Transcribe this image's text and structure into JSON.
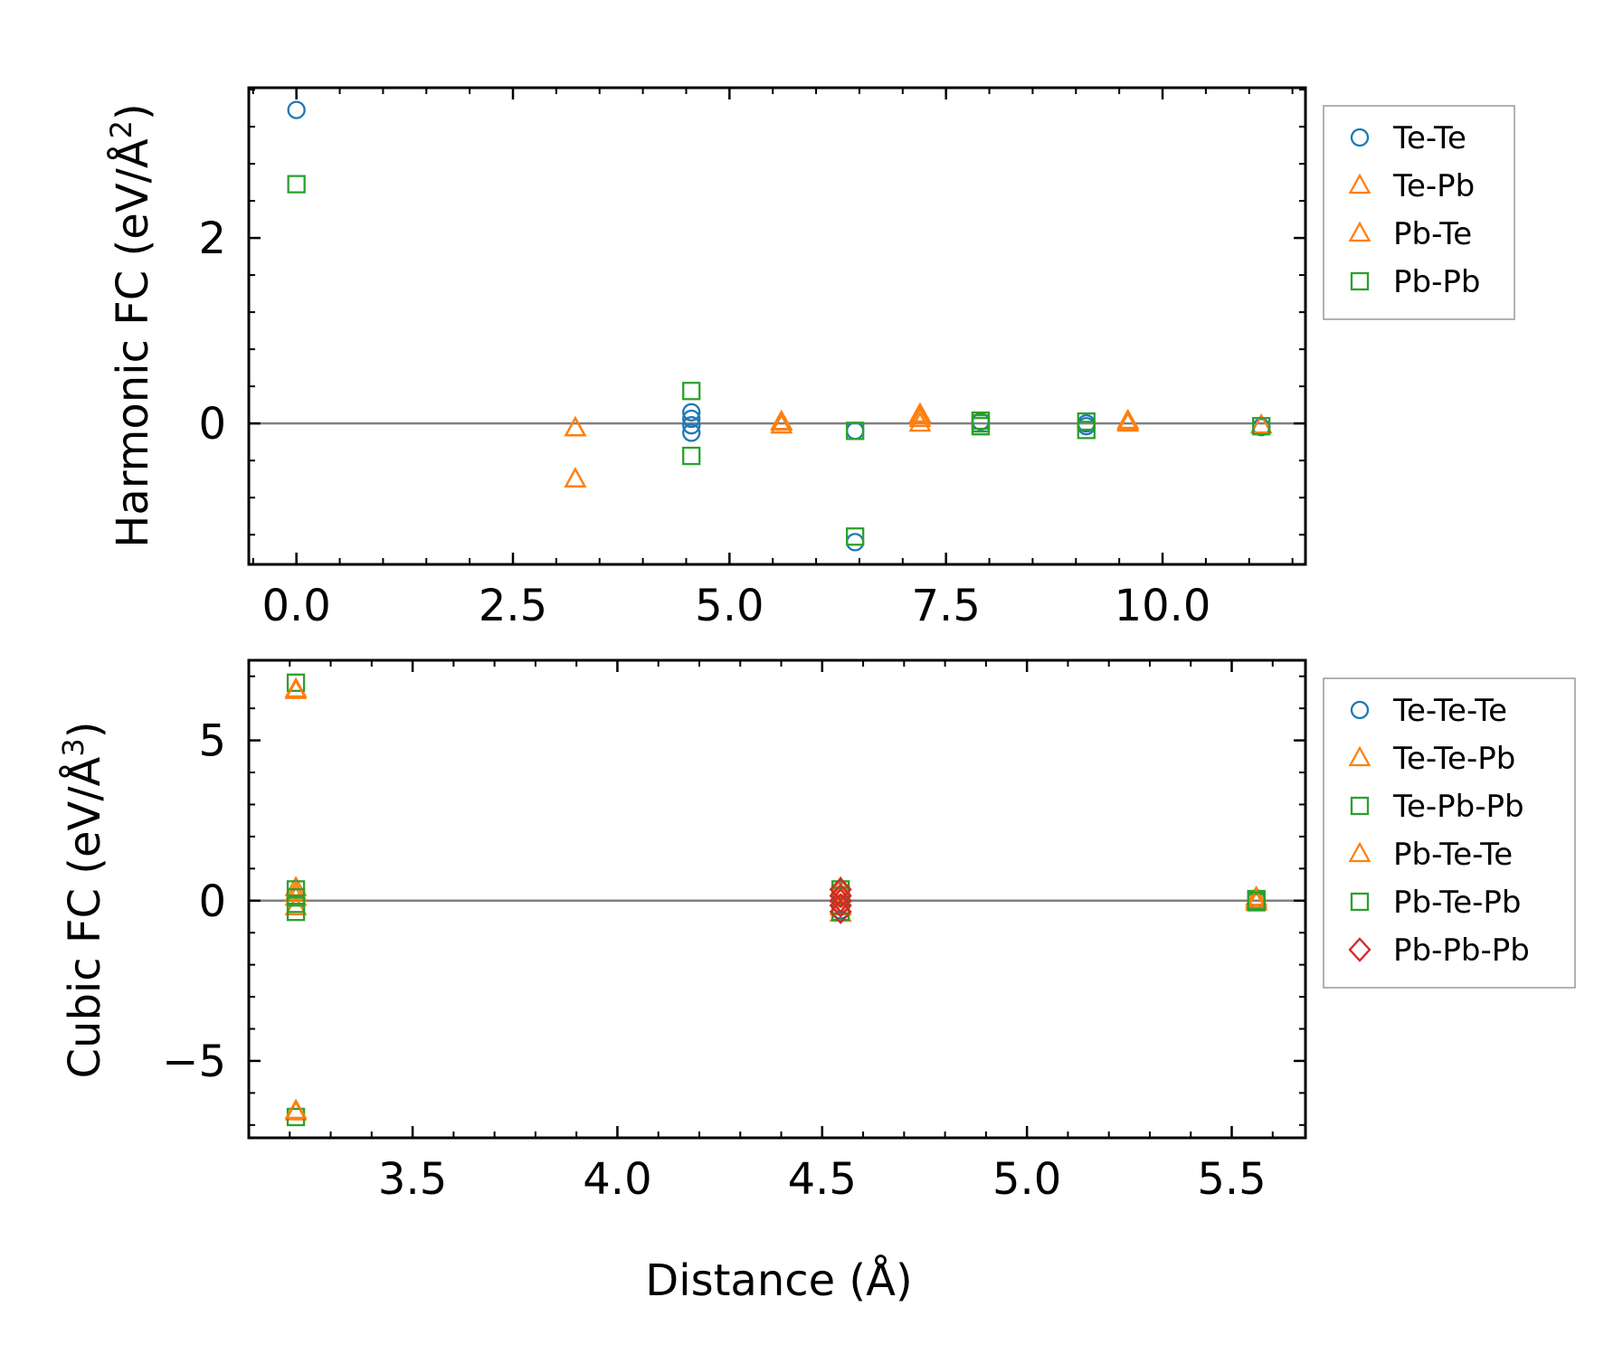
{
  "colors": {
    "blue": "#1f77b4",
    "orange": "#ff7f0e",
    "green": "#2ca02c",
    "red": "#d62728",
    "zero_line": "#808080"
  },
  "chart_data": [
    {
      "type": "scatter",
      "ylabel": "Harmonic FC (eV/Å²)",
      "ylabel_main": "Harmonic FC (eV/Å",
      "ylabel_sup": "2",
      "ylabel_end": ")",
      "xlabel": "",
      "xlim": [
        -0.55,
        11.65
      ],
      "ylim": [
        -1.52,
        3.62
      ],
      "xticks": [
        0.0,
        2.5,
        5.0,
        7.5,
        10.0
      ],
      "xtick_labels": [
        "0.0",
        "2.5",
        "5.0",
        "7.5",
        "10.0"
      ],
      "yticks": [
        0,
        2
      ],
      "ytick_labels": [
        "0",
        "2"
      ],
      "zero_line": true,
      "legend": "right-outside-top",
      "series": [
        {
          "name": "Te-Te",
          "marker": "circle",
          "color": "#1f77b4",
          "points": [
            [
              0.0,
              3.38
            ],
            [
              4.56,
              0.12
            ],
            [
              4.56,
              0.05
            ],
            [
              4.56,
              -0.02
            ],
            [
              4.56,
              -0.1
            ],
            [
              6.45,
              -0.08
            ],
            [
              6.45,
              -1.28
            ],
            [
              7.9,
              0.02
            ],
            [
              9.12,
              0.0
            ],
            [
              9.12,
              -0.03
            ],
            [
              11.14,
              -0.04
            ]
          ]
        },
        {
          "name": "Te-Pb",
          "marker": "triangle",
          "color": "#ff7f0e",
          "points": [
            [
              3.22,
              -0.05
            ],
            [
              3.22,
              -0.6
            ],
            [
              5.6,
              0.02
            ],
            [
              5.6,
              -0.02
            ],
            [
              7.2,
              0.1
            ],
            [
              7.2,
              0.05
            ],
            [
              7.2,
              0.0
            ],
            [
              9.6,
              0.03
            ],
            [
              9.6,
              0.0
            ],
            [
              11.14,
              -0.02
            ]
          ]
        },
        {
          "name": "Pb-Te",
          "marker": "triangle",
          "color": "#ff7f0e",
          "points": [
            [
              3.22,
              -0.05
            ],
            [
              3.22,
              -0.6
            ],
            [
              5.6,
              0.01
            ],
            [
              7.2,
              0.08
            ],
            [
              9.6,
              0.02
            ]
          ]
        },
        {
          "name": "Pb-Pb",
          "marker": "square",
          "color": "#2ca02c",
          "points": [
            [
              0.0,
              2.58
            ],
            [
              4.56,
              0.35
            ],
            [
              4.56,
              -0.35
            ],
            [
              6.45,
              -1.22
            ],
            [
              6.45,
              -0.08
            ],
            [
              7.9,
              0.0
            ],
            [
              7.9,
              0.03
            ],
            [
              7.9,
              -0.03
            ],
            [
              9.12,
              0.02
            ],
            [
              9.12,
              -0.07
            ],
            [
              11.14,
              -0.03
            ]
          ]
        }
      ]
    },
    {
      "type": "scatter",
      "ylabel": "Cubic FC (eV/Å³)",
      "ylabel_main": "Cubic FC (eV/Å",
      "ylabel_sup": "3",
      "ylabel_end": ")",
      "xlabel": "Distance (Å)",
      "xlim": [
        3.1,
        5.68
      ],
      "ylim": [
        -7.4,
        7.5
      ],
      "xticks": [
        3.5,
        4.0,
        4.5,
        5.0,
        5.5
      ],
      "xtick_labels": [
        "3.5",
        "4.0",
        "4.5",
        "5.0",
        "5.5"
      ],
      "yticks": [
        -5,
        0,
        5
      ],
      "ytick_labels": [
        "−5",
        "0",
        "5"
      ],
      "zero_line": true,
      "legend": "right-outside-top",
      "series": [
        {
          "name": "Te-Te-Te",
          "marker": "circle",
          "color": "#1f77b4",
          "points": [
            [
              4.545,
              0.3
            ],
            [
              4.545,
              0.1
            ],
            [
              4.545,
              -0.1
            ],
            [
              4.545,
              -0.3
            ],
            [
              5.56,
              0.05
            ]
          ]
        },
        {
          "name": "Te-Te-Pb",
          "marker": "triangle",
          "color": "#ff7f0e",
          "points": [
            [
              3.215,
              6.6
            ],
            [
              3.215,
              -6.6
            ],
            [
              3.215,
              0.4
            ],
            [
              3.215,
              0.1
            ],
            [
              3.215,
              -0.2
            ],
            [
              4.545,
              0.4
            ],
            [
              4.545,
              -0.4
            ],
            [
              5.56,
              0.1
            ],
            [
              5.56,
              -0.05
            ]
          ]
        },
        {
          "name": "Te-Pb-Pb",
          "marker": "square",
          "color": "#2ca02c",
          "points": [
            [
              3.215,
              6.8
            ],
            [
              3.215,
              -6.75
            ],
            [
              3.215,
              0.35
            ],
            [
              3.215,
              -0.35
            ],
            [
              4.545,
              0.35
            ],
            [
              4.545,
              -0.35
            ],
            [
              5.56,
              0.05
            ],
            [
              5.56,
              -0.05
            ]
          ]
        },
        {
          "name": "Pb-Te-Te",
          "marker": "triangle",
          "color": "#ff7f0e",
          "points": [
            [
              3.215,
              6.55
            ],
            [
              3.215,
              -6.55
            ],
            [
              3.215,
              0.25
            ],
            [
              4.545,
              0.2
            ],
            [
              4.545,
              -0.2
            ],
            [
              5.56,
              0.02
            ]
          ]
        },
        {
          "name": "Pb-Te-Pb",
          "marker": "square",
          "color": "#2ca02c",
          "points": [
            [
              3.215,
              0.1
            ],
            [
              3.215,
              -0.1
            ],
            [
              4.545,
              0.15
            ],
            [
              4.545,
              -0.15
            ],
            [
              5.56,
              0.0
            ]
          ]
        },
        {
          "name": "Pb-Pb-Pb",
          "marker": "diamond",
          "color": "#d62728",
          "points": [
            [
              4.545,
              0.35
            ],
            [
              4.545,
              0.15
            ],
            [
              4.545,
              0.0
            ],
            [
              4.545,
              -0.15
            ],
            [
              4.545,
              -0.35
            ]
          ]
        }
      ]
    }
  ]
}
